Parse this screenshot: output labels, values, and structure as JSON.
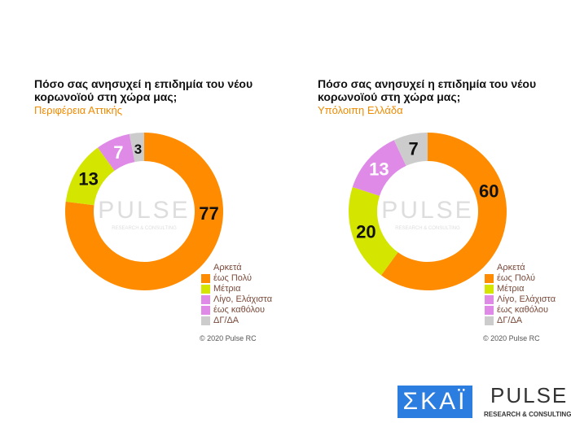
{
  "chart_data": [
    {
      "type": "donut",
      "title": "Πόσο σας ανησυχεί η επιδημία του νέου κορωνοϊού στη χώρα μας;",
      "subtitle": "Περιφέρεια Αττικής",
      "categories": [
        "Αρκετά έως Πολύ",
        "Μέτρια",
        "Λίγο, Ελάχιστα έως καθόλου",
        "ΔΓ/ΔΑ"
      ],
      "values": [
        77,
        13,
        7,
        3
      ],
      "labels": [
        "77",
        "13",
        "7",
        "3"
      ]
    },
    {
      "type": "donut",
      "title": "Πόσο σας ανησυχεί η επιδημία του νέου κορωνοϊού στη χώρα μας;",
      "subtitle": "Υπόλοιπη Ελλάδα",
      "categories": [
        "Αρκετά έως Πολύ",
        "Μέτρια",
        "Λίγο, Ελάχιστα έως καθόλου",
        "ΔΓ/ΔΑ"
      ],
      "values": [
        60,
        20,
        13,
        7
      ],
      "labels": [
        "60",
        "20",
        "13",
        "7"
      ]
    }
  ],
  "colors": [
    "#ff8c00",
    "#d4e600",
    "#e08ae8",
    "#cccccc"
  ],
  "label_colors": [
    "#111111",
    "#111111",
    "#ffffff",
    "#111111"
  ],
  "legend": [
    "Αρκετά",
    "έως Πολύ",
    "Μέτρια",
    "Λίγο, Ελάχιστα",
    "έως καθόλου",
    "ΔΓ/ΔΑ"
  ],
  "copyright": "© 2020 Pulse RC",
  "watermark": {
    "word": "PULSE",
    "tag": "RESEARCH & CONSULTING"
  },
  "logos": {
    "skai": "ΣΚΑΪ",
    "pulse": "PULSE",
    "pulse_tag": "RESEARCH & CONSULTING"
  }
}
